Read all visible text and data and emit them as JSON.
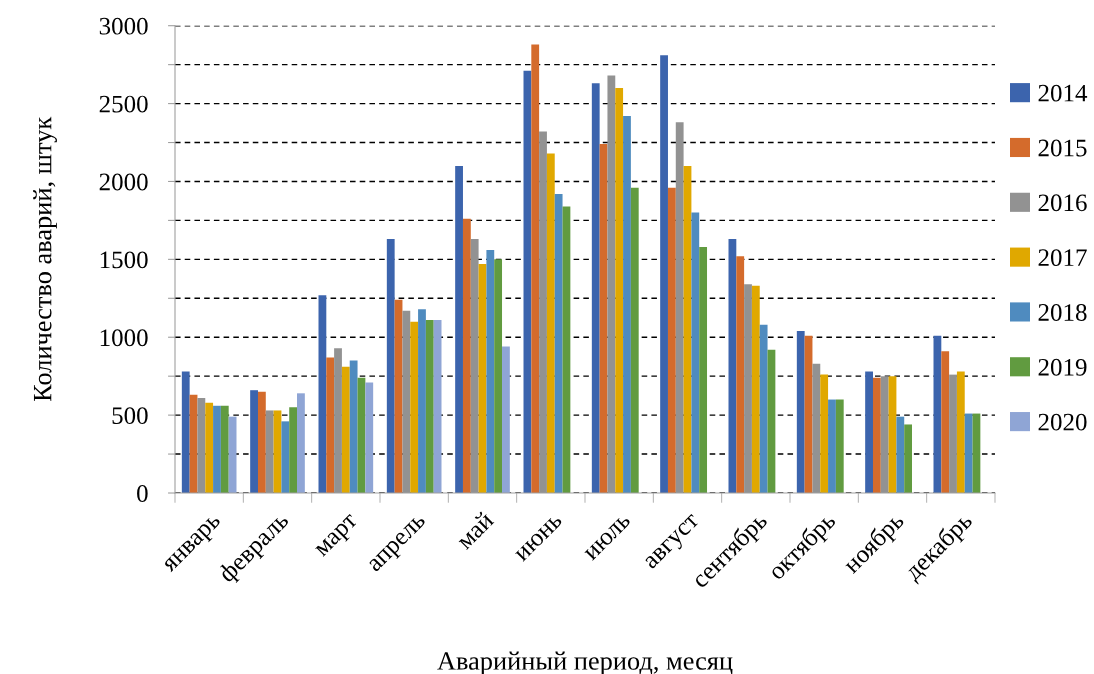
{
  "chart_data": {
    "type": "bar",
    "xlabel": "Аварийный период, месяц",
    "ylabel": "Количество аварий, штук",
    "categories": [
      "январь",
      "февраль",
      "март",
      "апрель",
      "май",
      "июнь",
      "июль",
      "август",
      "сентябрь",
      "октябрь",
      "ноябрь",
      "декабрь"
    ],
    "series": [
      {
        "name": "2014",
        "color": "#3c64ad",
        "values": [
          780,
          660,
          1270,
          1630,
          2100,
          2710,
          2630,
          2810,
          1630,
          1040,
          780,
          1010
        ]
      },
      {
        "name": "2015",
        "color": "#d46b2c",
        "values": [
          630,
          650,
          870,
          1240,
          1760,
          2880,
          2240,
          1960,
          1520,
          1010,
          740,
          910
        ]
      },
      {
        "name": "2016",
        "color": "#929292",
        "values": [
          610,
          530,
          930,
          1170,
          1630,
          2320,
          2680,
          2380,
          1340,
          830,
          750,
          760
        ]
      },
      {
        "name": "2017",
        "color": "#e0a800",
        "values": [
          580,
          530,
          810,
          1100,
          1470,
          2180,
          2600,
          2100,
          1330,
          760,
          750,
          780
        ]
      },
      {
        "name": "2018",
        "color": "#4f8bbf",
        "values": [
          560,
          460,
          850,
          1180,
          1560,
          1920,
          2420,
          1800,
          1080,
          600,
          490,
          510
        ]
      },
      {
        "name": "2019",
        "color": "#619b40",
        "values": [
          560,
          550,
          740,
          1110,
          1500,
          1840,
          1960,
          1580,
          920,
          600,
          440,
          510
        ]
      },
      {
        "name": "2020",
        "color": "#8fa5d5",
        "values": [
          490,
          640,
          710,
          1110,
          940,
          null,
          null,
          null,
          null,
          null,
          null,
          null
        ]
      }
    ],
    "ylim": [
      0,
      3000
    ],
    "yticks": [
      0,
      {
        "value": 250,
        "label": null
      },
      500,
      {
        "value": 750,
        "label": null
      },
      1000,
      {
        "value": 1250,
        "label": null
      },
      1500,
      {
        "value": 1750,
        "label": null
      },
      2000,
      {
        "value": 2250,
        "label": null
      },
      2500,
      {
        "value": 2750,
        "label": null
      },
      3000
    ],
    "grid": "y",
    "legend": "right"
  }
}
